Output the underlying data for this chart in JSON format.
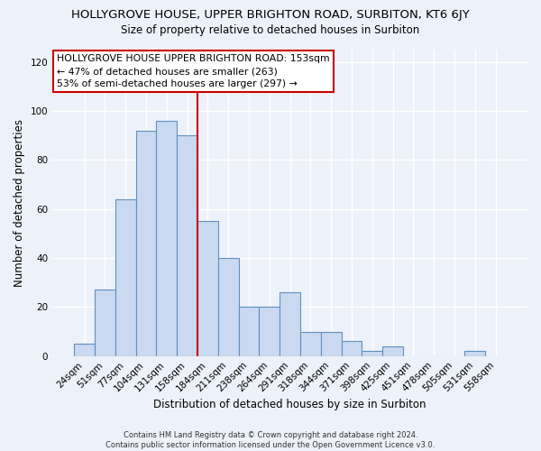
{
  "title": "HOLLYGROVE HOUSE, UPPER BRIGHTON ROAD, SURBITON, KT6 6JY",
  "subtitle": "Size of property relative to detached houses in Surbiton",
  "xlabel": "Distribution of detached houses by size in Surbiton",
  "ylabel": "Number of detached properties",
  "footer_line1": "Contains HM Land Registry data © Crown copyright and database right 2024.",
  "footer_line2": "Contains public sector information licensed under the Open Government Licence v3.0.",
  "bar_labels": [
    "24sqm",
    "51sqm",
    "77sqm",
    "104sqm",
    "131sqm",
    "158sqm",
    "184sqm",
    "211sqm",
    "238sqm",
    "264sqm",
    "291sqm",
    "318sqm",
    "344sqm",
    "371sqm",
    "398sqm",
    "425sqm",
    "451sqm",
    "478sqm",
    "505sqm",
    "531sqm",
    "558sqm"
  ],
  "bar_values": [
    5,
    27,
    64,
    92,
    96,
    90,
    55,
    40,
    20,
    20,
    26,
    10,
    10,
    6,
    2,
    4,
    0,
    0,
    0,
    2,
    0
  ],
  "bar_color": "#c8d9f0",
  "bar_edgecolor": "#6090c0",
  "vline_x_index": 5,
  "vline_color": "#cc0000",
  "annotation_box_text": "HOLLYGROVE HOUSE UPPER BRIGHTON ROAD: 153sqm\n← 47% of detached houses are smaller (263)\n53% of semi-detached houses are larger (297) →",
  "ylim": [
    0,
    125
  ],
  "background_color": "#edf2fa"
}
